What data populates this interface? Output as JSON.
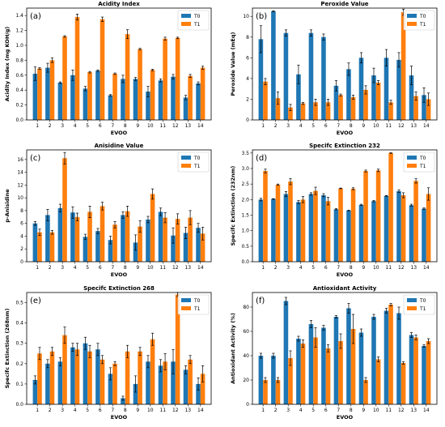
{
  "chart_data": [
    {
      "type": "bar",
      "panel_label": "(a)",
      "title": "Acidity Index",
      "xlabel": "EVOO",
      "ylabel": "Acidity Index (mg KOH/g)",
      "ylim": [
        0,
        1.5
      ],
      "yticks": [
        "0.0",
        "0.2",
        "0.4",
        "0.6",
        "0.8",
        "1.0",
        "1.2",
        "1.4"
      ],
      "categories": [
        "1",
        "2",
        "3",
        "4",
        "5",
        "6",
        "7",
        "8",
        "9",
        "10",
        "11",
        "12",
        "13",
        "14"
      ],
      "legend_position": "top-right",
      "series": [
        {
          "name": "T0",
          "color": "#1f77b4",
          "values": [
            0.62,
            0.7,
            0.5,
            0.6,
            0.42,
            0.66,
            0.33,
            0.55,
            0.55,
            0.38,
            0.53,
            0.58,
            0.3,
            0.49
          ],
          "errors": [
            0.09,
            0.06,
            0.01,
            0.07,
            0.03,
            0.01,
            0.01,
            0.05,
            0.02,
            0.07,
            0.02,
            0.03,
            0.03,
            0.02
          ]
        },
        {
          "name": "T1",
          "color": "#ff7f0e",
          "values": [
            0.69,
            0.8,
            1.12,
            1.38,
            0.64,
            1.35,
            0.62,
            1.15,
            0.95,
            0.67,
            1.09,
            1.1,
            0.59,
            0.7
          ],
          "errors": [
            0.01,
            0.03,
            0.01,
            0.04,
            0.01,
            0.03,
            0.01,
            0.06,
            0.01,
            0.01,
            0.02,
            0.01,
            0.02,
            0.02
          ]
        }
      ]
    },
    {
      "type": "bar",
      "panel_label": "(b)",
      "title": "Peroxide Value",
      "xlabel": "EVOO",
      "ylabel": "Peroxide Value (mEq)",
      "ylim": [
        0,
        10.8
      ],
      "yticks": [
        "0",
        "2",
        "4",
        "6",
        "8",
        "10"
      ],
      "categories": [
        "1",
        "2",
        "3",
        "4",
        "5",
        "6",
        "7",
        "8",
        "9",
        "10",
        "11",
        "12",
        "13",
        "14"
      ],
      "legend_position": "top-right",
      "series": [
        {
          "name": "T0",
          "color": "#1f77b4",
          "values": [
            7.8,
            10.5,
            8.4,
            4.4,
            8.4,
            8.0,
            3.3,
            4.9,
            6.0,
            4.3,
            6.0,
            5.8,
            4.3,
            2.4
          ],
          "errors": [
            1.3,
            0.05,
            0.3,
            0.9,
            0.3,
            0.3,
            0.5,
            0.6,
            0.5,
            0.7,
            0.8,
            0.7,
            0.9,
            0.7
          ]
        },
        {
          "name": "T1",
          "color": "#ff7f0e",
          "values": [
            3.7,
            2.1,
            1.2,
            1.6,
            1.7,
            1.7,
            2.4,
            2.2,
            2.9,
            3.6,
            1.7,
            10.4,
            2.3,
            2.0
          ],
          "errors": [
            0.3,
            0.6,
            0.3,
            0.1,
            0.3,
            0.3,
            0.1,
            0.2,
            0.4,
            0.2,
            0.2,
            0.3,
            0.4,
            0.6
          ]
        }
      ]
    },
    {
      "type": "bar",
      "panel_label": "(c)",
      "title": "Anisidine Value",
      "xlabel": "EVOO",
      "ylabel": "p-Anisidine",
      "ylim": [
        0,
        17.5
      ],
      "yticks": [
        "0",
        "2",
        "4",
        "6",
        "8",
        "10",
        "12",
        "14",
        "16"
      ],
      "categories": [
        "1",
        "2",
        "3",
        "4",
        "5",
        "6",
        "7",
        "8",
        "9",
        "10",
        "11",
        "12",
        "13",
        "14"
      ],
      "legend_position": "top-right",
      "series": [
        {
          "name": "T0",
          "color": "#1f77b4",
          "values": [
            6.0,
            7.3,
            8.4,
            7.7,
            3.9,
            4.8,
            3.4,
            7.3,
            3.0,
            6.6,
            7.8,
            4.1,
            4.5,
            5.3
          ],
          "errors": [
            0.3,
            0.9,
            0.6,
            0.9,
            0.4,
            0.4,
            0.6,
            0.5,
            1.2,
            0.5,
            0.6,
            1.2,
            0.9,
            0.7
          ]
        },
        {
          "name": "T1",
          "color": "#ff7f0e",
          "values": [
            4.6,
            4.6,
            16.2,
            7.0,
            7.8,
            8.7,
            5.8,
            7.9,
            5.5,
            10.6,
            6.9,
            6.7,
            6.9,
            4.4
          ],
          "errors": [
            0.5,
            0.3,
            0.9,
            0.6,
            0.9,
            0.6,
            0.5,
            0.8,
            0.9,
            0.8,
            0.8,
            0.8,
            1.1,
            1.0
          ]
        }
      ]
    },
    {
      "type": "bar",
      "panel_label": "(d)",
      "title": "Specifc Extinction 232",
      "xlabel": "EVOO",
      "ylabel": "Specifc Extinction (232nm)",
      "ylim": [
        0,
        3.6
      ],
      "yticks": [
        "0.0",
        "0.5",
        "1.0",
        "1.5",
        "2.0",
        "2.5",
        "3.0",
        "3.5"
      ],
      "categories": [
        "1",
        "2",
        "3",
        "4",
        "5",
        "6",
        "7",
        "8",
        "9",
        "10",
        "11",
        "12",
        "13",
        "14"
      ],
      "legend_position": "top-right",
      "series": [
        {
          "name": "T0",
          "color": "#1f77b4",
          "values": [
            2.0,
            2.02,
            2.18,
            1.92,
            2.18,
            2.14,
            1.69,
            1.65,
            1.83,
            1.95,
            2.12,
            2.27,
            1.82,
            1.71
          ],
          "errors": [
            0.04,
            0.01,
            0.08,
            0.05,
            0.04,
            0.05,
            0.02,
            0.01,
            0.02,
            0.02,
            0.01,
            0.04,
            0.03,
            0.02
          ]
        },
        {
          "name": "T1",
          "color": "#ff7f0e",
          "values": [
            2.92,
            2.48,
            2.58,
            2.0,
            2.28,
            1.95,
            2.36,
            2.35,
            2.92,
            2.94,
            3.5,
            2.14,
            2.6,
            2.18
          ],
          "errors": [
            0.06,
            0.02,
            0.1,
            0.1,
            0.12,
            0.12,
            0.01,
            0.03,
            0.03,
            0.04,
            0.01,
            0.08,
            0.07,
            0.2
          ]
        }
      ]
    },
    {
      "type": "bar",
      "panel_label": "(e)",
      "title": "Specifc Extinction 268",
      "xlabel": "EVOO",
      "ylabel": "Specifc Extinction (268nm)",
      "ylim": [
        0,
        0.55
      ],
      "yticks": [
        "0.0",
        "0.1",
        "0.2",
        "0.3",
        "0.4",
        "0.5"
      ],
      "categories": [
        "1",
        "2",
        "3",
        "4",
        "5",
        "6",
        "7",
        "8",
        "9",
        "10",
        "11",
        "12",
        "13",
        "14"
      ],
      "legend_position": "top-right",
      "series": [
        {
          "name": "T0",
          "color": "#1f77b4",
          "values": [
            0.12,
            0.2,
            0.21,
            0.28,
            0.3,
            0.27,
            0.15,
            0.03,
            0.1,
            0.21,
            0.19,
            0.21,
            0.17,
            0.1
          ],
          "errors": [
            0.02,
            0.02,
            0.02,
            0.02,
            0.03,
            0.03,
            0.03,
            0.01,
            0.04,
            0.03,
            0.03,
            0.06,
            0.02,
            0.03
          ]
        },
        {
          "name": "T1",
          "color": "#ff7f0e",
          "values": [
            0.25,
            0.26,
            0.34,
            0.27,
            0.26,
            0.22,
            0.2,
            0.26,
            0.26,
            0.32,
            0.21,
            0.54,
            0.22,
            0.15
          ],
          "errors": [
            0.03,
            0.02,
            0.04,
            0.03,
            0.03,
            0.02,
            0.01,
            0.03,
            0.02,
            0.03,
            0.04,
            0.01,
            0.02,
            0.04
          ]
        }
      ]
    },
    {
      "type": "bar",
      "panel_label": "(f)",
      "title": "Antioxidant Activity",
      "xlabel": "EVOO",
      "ylabel": "Antioxidant Activity (%)",
      "ylim": [
        0,
        92
      ],
      "yticks": [
        "0",
        "20",
        "40",
        "60",
        "80"
      ],
      "categories": [
        "1",
        "2",
        "3",
        "4",
        "5",
        "6",
        "7",
        "8",
        "9",
        "10",
        "11",
        "12",
        "13",
        "14"
      ],
      "legend_position": "top-right",
      "series": [
        {
          "name": "T0",
          "color": "#1f77b4",
          "values": [
            40,
            40,
            85,
            54,
            66,
            63,
            72,
            79,
            59,
            72,
            77,
            75,
            57,
            48
          ],
          "errors": [
            2,
            2,
            3,
            2,
            3,
            2,
            1,
            4,
            3,
            2,
            2,
            5,
            2,
            1
          ]
        },
        {
          "name": "T1",
          "color": "#ff7f0e",
          "values": [
            20,
            20,
            38,
            50,
            55,
            46,
            52,
            62,
            20,
            37,
            82,
            34,
            55,
            52
          ],
          "errors": [
            2,
            2,
            6,
            3,
            8,
            3,
            6,
            12,
            2,
            2,
            1,
            1,
            2,
            2
          ]
        }
      ]
    }
  ]
}
